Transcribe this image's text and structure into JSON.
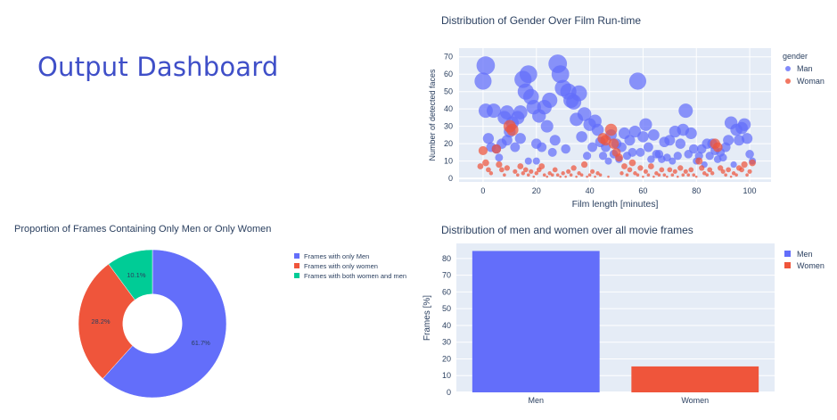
{
  "page": {
    "title": "Output Dashboard"
  },
  "colors": {
    "men": "#636efa",
    "women": "#ef553b",
    "both": "#00cc96",
    "plot_bg": "#e5ecf6",
    "grid": "#ffffff",
    "text": "#2a3f5f"
  },
  "chart_data": [
    {
      "type": "scatter",
      "title": "Distribution of Gender Over Film Run-time",
      "xlabel": "Film length [minutes]",
      "ylabel": "Number of detected faces",
      "xlim": [
        -9,
        108
      ],
      "ylim": [
        -2,
        75
      ],
      "xticks": [
        0,
        20,
        40,
        60,
        80,
        100
      ],
      "yticks": [
        0,
        10,
        20,
        30,
        40,
        50,
        60,
        70
      ],
      "legend_title": "gender",
      "legend_position": "right",
      "series": [
        {
          "name": "Man",
          "points": [
            [
              0,
              56
            ],
            [
              1,
              65
            ],
            [
              1,
              39
            ],
            [
              2,
              23
            ],
            [
              3,
              18
            ],
            [
              4,
              39
            ],
            [
              5,
              17
            ],
            [
              6,
              12
            ],
            [
              7,
              20
            ],
            [
              8,
              35
            ],
            [
              9,
              38
            ],
            [
              9,
              22
            ],
            [
              10,
              27
            ],
            [
              11,
              32
            ],
            [
              12,
              18
            ],
            [
              13,
              35
            ],
            [
              14,
              38
            ],
            [
              14,
              23
            ],
            [
              15,
              57
            ],
            [
              16,
              50
            ],
            [
              17,
              60
            ],
            [
              17,
              10
            ],
            [
              18,
              47
            ],
            [
              19,
              41
            ],
            [
              20,
              20
            ],
            [
              20,
              10
            ],
            [
              21,
              36
            ],
            [
              22,
              18
            ],
            [
              23,
              41
            ],
            [
              24,
              30
            ],
            [
              25,
              45
            ],
            [
              26,
              15
            ],
            [
              27,
              22
            ],
            [
              28,
              66
            ],
            [
              29,
              60
            ],
            [
              30,
              52
            ],
            [
              31,
              17
            ],
            [
              32,
              50
            ],
            [
              33,
              45
            ],
            [
              34,
              44
            ],
            [
              35,
              34
            ],
            [
              36,
              49
            ],
            [
              37,
              24
            ],
            [
              38,
              37
            ],
            [
              39,
              13
            ],
            [
              40,
              31
            ],
            [
              41,
              18
            ],
            [
              42,
              33
            ],
            [
              43,
              28
            ],
            [
              44,
              21
            ],
            [
              45,
              13
            ],
            [
              46,
              18
            ],
            [
              47,
              10
            ],
            [
              48,
              25
            ],
            [
              49,
              14
            ],
            [
              50,
              20
            ],
            [
              51,
              11
            ],
            [
              52,
              18
            ],
            [
              53,
              26
            ],
            [
              54,
              13
            ],
            [
              55,
              22
            ],
            [
              56,
              15
            ],
            [
              57,
              27
            ],
            [
              58,
              56
            ],
            [
              59,
              15
            ],
            [
              60,
              24
            ],
            [
              61,
              31
            ],
            [
              62,
              18
            ],
            [
              63,
              11
            ],
            [
              64,
              25
            ],
            [
              65,
              14
            ],
            [
              66,
              14
            ],
            [
              67,
              11
            ],
            [
              68,
              21
            ],
            [
              69,
              12
            ],
            [
              70,
              22
            ],
            [
              71,
              10
            ],
            [
              72,
              27
            ],
            [
              73,
              13
            ],
            [
              74,
              20
            ],
            [
              75,
              28
            ],
            [
              76,
              39
            ],
            [
              77,
              14
            ],
            [
              78,
              26
            ],
            [
              79,
              17
            ],
            [
              80,
              10
            ],
            [
              81,
              13
            ],
            [
              82,
              17
            ],
            [
              83,
              8
            ],
            [
              84,
              20
            ],
            [
              85,
              13
            ],
            [
              86,
              20
            ],
            [
              87,
              16
            ],
            [
              88,
              11
            ],
            [
              89,
              15
            ],
            [
              90,
              12
            ],
            [
              91,
              18
            ],
            [
              92,
              22
            ],
            [
              93,
              32
            ],
            [
              94,
              8
            ],
            [
              95,
              28
            ],
            [
              96,
              22
            ],
            [
              97,
              29
            ],
            [
              98,
              31
            ],
            [
              99,
              23
            ],
            [
              100,
              14
            ],
            [
              101,
              10
            ]
          ]
        },
        {
          "name": "Woman",
          "points": [
            [
              -1,
              7
            ],
            [
              0,
              16
            ],
            [
              1,
              9
            ],
            [
              2,
              5
            ],
            [
              3,
              3
            ],
            [
              5,
              17
            ],
            [
              6,
              8
            ],
            [
              7,
              5
            ],
            [
              8,
              2
            ],
            [
              9,
              6
            ],
            [
              10,
              30
            ],
            [
              11,
              28
            ],
            [
              12,
              4
            ],
            [
              13,
              2
            ],
            [
              14,
              7
            ],
            [
              15,
              3
            ],
            [
              16,
              5
            ],
            [
              17,
              2
            ],
            [
              18,
              4
            ],
            [
              19,
              1
            ],
            [
              20,
              3
            ],
            [
              21,
              5
            ],
            [
              22,
              7
            ],
            [
              23,
              2
            ],
            [
              24,
              1
            ],
            [
              25,
              3
            ],
            [
              26,
              2
            ],
            [
              27,
              5
            ],
            [
              28,
              2
            ],
            [
              29,
              1
            ],
            [
              30,
              3
            ],
            [
              31,
              1
            ],
            [
              32,
              4
            ],
            [
              33,
              2
            ],
            [
              34,
              6
            ],
            [
              35,
              1
            ],
            [
              36,
              3
            ],
            [
              37,
              2
            ],
            [
              38,
              8
            ],
            [
              39,
              1
            ],
            [
              40,
              2
            ],
            [
              41,
              4
            ],
            [
              42,
              1
            ],
            [
              43,
              3
            ],
            [
              44,
              2
            ],
            [
              45,
              23
            ],
            [
              46,
              22
            ],
            [
              47,
              1
            ],
            [
              48,
              28
            ],
            [
              49,
              20
            ],
            [
              50,
              15
            ],
            [
              51,
              12
            ],
            [
              52,
              3
            ],
            [
              53,
              7
            ],
            [
              54,
              2
            ],
            [
              55,
              5
            ],
            [
              56,
              9
            ],
            [
              57,
              3
            ],
            [
              58,
              2
            ],
            [
              59,
              6
            ],
            [
              60,
              1
            ],
            [
              61,
              4
            ],
            [
              62,
              2
            ],
            [
              63,
              7
            ],
            [
              64,
              1
            ],
            [
              65,
              3
            ],
            [
              66,
              2
            ],
            [
              67,
              5
            ],
            [
              68,
              2
            ],
            [
              69,
              1
            ],
            [
              70,
              5
            ],
            [
              71,
              2
            ],
            [
              72,
              4
            ],
            [
              73,
              1
            ],
            [
              74,
              6
            ],
            [
              75,
              2
            ],
            [
              76,
              4
            ],
            [
              77,
              2
            ],
            [
              78,
              5
            ],
            [
              79,
              2
            ],
            [
              80,
              1
            ],
            [
              81,
              10
            ],
            [
              82,
              6
            ],
            [
              83,
              3
            ],
            [
              84,
              2
            ],
            [
              85,
              5
            ],
            [
              86,
              3
            ],
            [
              87,
              20
            ],
            [
              88,
              18
            ],
            [
              89,
              6
            ],
            [
              90,
              4
            ],
            [
              91,
              2
            ],
            [
              92,
              5
            ],
            [
              93,
              1
            ],
            [
              94,
              3
            ],
            [
              95,
              2
            ],
            [
              96,
              6
            ],
            [
              97,
              5
            ],
            [
              98,
              8
            ],
            [
              99,
              2
            ],
            [
              100,
              4
            ],
            [
              101,
              9
            ]
          ]
        }
      ]
    },
    {
      "type": "pie",
      "title": "Proportion of Frames Containing Only Men or Only Women",
      "hole": 0.4,
      "legend_position": "right",
      "slices": [
        {
          "label": "Frames with only Men",
          "value": 61.7,
          "text": "61.7%",
          "color": "#636efa"
        },
        {
          "label": "Frames with only women",
          "value": 28.2,
          "text": "28.2%",
          "color": "#ef553b"
        },
        {
          "label": "Frames with both women and men",
          "value": 10.1,
          "text": "10.1%",
          "color": "#00cc96"
        }
      ]
    },
    {
      "type": "bar",
      "title": "Distribution of men and women over all movie frames",
      "xlabel": "",
      "ylabel": "Frames [%]",
      "ylim": [
        0,
        89
      ],
      "yticks": [
        0,
        10,
        20,
        30,
        40,
        50,
        60,
        70,
        80
      ],
      "legend_position": "right",
      "categories": [
        "Men",
        "Women"
      ],
      "series": [
        {
          "name": "Men",
          "values": [
            84.5,
            null
          ],
          "color": "#636efa"
        },
        {
          "name": "Women",
          "values": [
            null,
            15.5
          ],
          "color": "#ef553b"
        }
      ]
    }
  ]
}
